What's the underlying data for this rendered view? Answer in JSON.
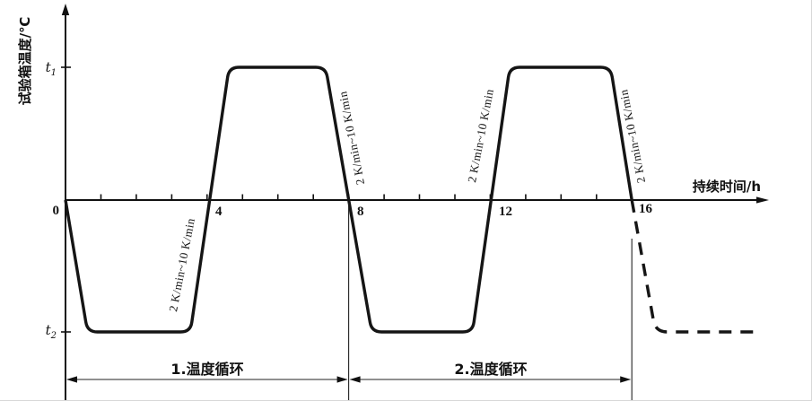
{
  "axes": {
    "y_label": "试验箱温度/℃",
    "x_label": "持续时间/h",
    "origin_label": "0",
    "y_tick_high_base": "t",
    "y_tick_high_sub": "1",
    "y_tick_low_base": "t",
    "y_tick_low_sub": "2"
  },
  "annotations": {
    "ramp_rate_label": "2 K/min~10 K/min"
  },
  "colors": {
    "line": "#151515",
    "background": "#ffffff"
  },
  "chart_data": {
    "type": "line",
    "title": "",
    "xlabel": "持续时间/h",
    "ylabel": "试验箱温度/℃",
    "x_range": [
      0,
      19.6
    ],
    "x_ticks_labeled": [
      "4",
      "8",
      "12",
      "16"
    ],
    "x_tick_minor_step_h": 1,
    "y_levels": [
      "t1",
      "0",
      "t2"
    ],
    "grid": false,
    "ramp_rate_label": "2 K/min~10 K/min",
    "series": [
      {
        "name": "temperature-profile-solid",
        "style": "solid",
        "points": [
          {
            "t": 0.0,
            "level": "0"
          },
          {
            "t": 0.62,
            "level": "t2"
          },
          {
            "t": 3.53,
            "level": "t2"
          },
          {
            "t": 4.62,
            "level": "t1"
          },
          {
            "t": 7.35,
            "level": "t1"
          },
          {
            "t": 8.65,
            "level": "t2"
          },
          {
            "t": 11.5,
            "level": "t2"
          },
          {
            "t": 12.55,
            "level": "t1"
          },
          {
            "t": 15.4,
            "level": "t1"
          },
          {
            "t": 16.0,
            "level": "0"
          }
        ]
      },
      {
        "name": "temperature-profile-continuation",
        "style": "dashed",
        "points": [
          {
            "t": 16.0,
            "level": "0"
          },
          {
            "t": 16.67,
            "level": "t2"
          },
          {
            "t": 19.6,
            "level": "t2"
          }
        ]
      }
    ],
    "cycles": [
      {
        "label": "1.温度循环",
        "t_from": 0,
        "t_to": 8
      },
      {
        "label": "2.温度循环",
        "t_from": 8,
        "t_to": 16
      }
    ]
  }
}
